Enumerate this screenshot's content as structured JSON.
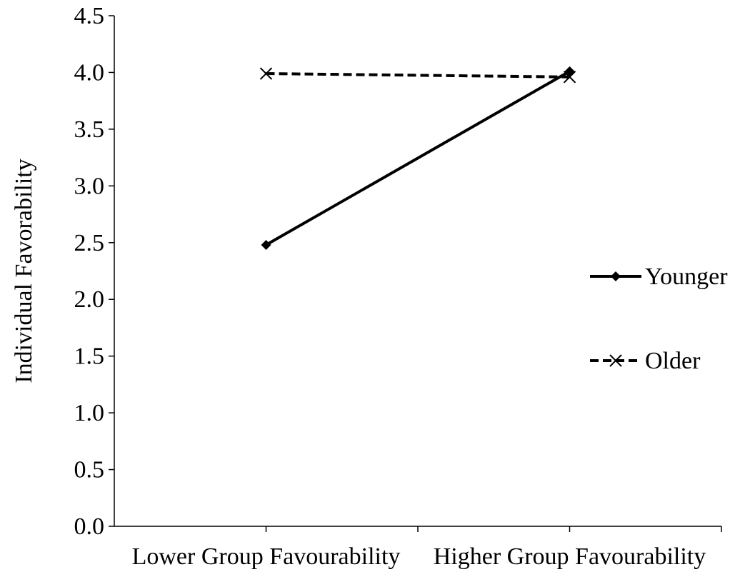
{
  "chart_data": {
    "type": "line",
    "title": "",
    "xlabel": "",
    "ylabel": "Individual Favorability",
    "categories": [
      "Lower Group Favourability",
      "Higher Group Favourability"
    ],
    "ylim": [
      0,
      4.5
    ],
    "yticks": [
      "0.0",
      "0.5",
      "1.0",
      "1.5",
      "2.0",
      "2.5",
      "3.0",
      "3.5",
      "4.0",
      "4.5"
    ],
    "grid": false,
    "legend_position": "right",
    "series": [
      {
        "name": "Younger",
        "values": [
          2.48,
          4.01
        ],
        "line_style": "solid",
        "marker": "diamond",
        "color": "#000000"
      },
      {
        "name": "Older",
        "values": [
          3.99,
          3.96
        ],
        "line_style": "dashed",
        "marker": "x",
        "color": "#000000"
      }
    ]
  }
}
